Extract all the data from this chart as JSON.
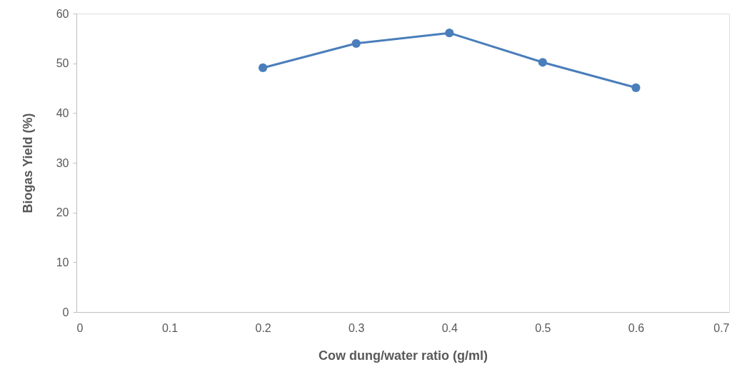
{
  "chart_data": {
    "type": "line",
    "xlabel": "Cow dung/water ratio (g/ml)",
    "ylabel": "Biogas Yield (%)",
    "x": [
      0.2,
      0.3,
      0.4,
      0.5,
      0.6
    ],
    "series": [
      {
        "color": "#4a7ebb",
        "values": [
          49.1,
          54.0,
          56.1,
          50.2,
          45.1
        ]
      }
    ],
    "xlim": [
      0,
      0.7
    ],
    "xticks": [
      0,
      0.1,
      0.2,
      0.3,
      0.4,
      0.5,
      0.6,
      0.7
    ],
    "ylim": [
      0,
      60
    ],
    "yticks": [
      0,
      10,
      20,
      30,
      40,
      50,
      60
    ],
    "marker": "circle",
    "line_style": "solid",
    "grid": false
  }
}
